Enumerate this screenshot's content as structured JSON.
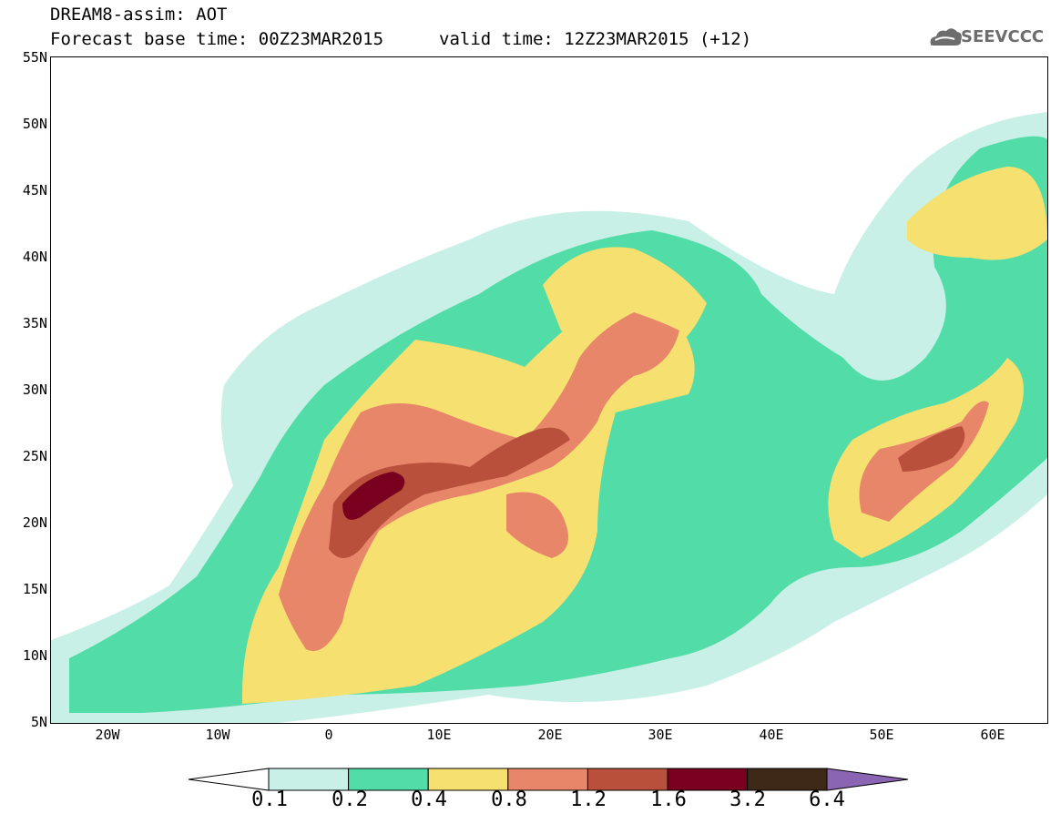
{
  "header": {
    "title_line1": "DREAM8-assim: AOT",
    "title_line2": "Forecast base time: 00Z23MAR2015",
    "valid_time": "valid time: 12Z23MAR2015 (+12)",
    "logo_text": "SEEVCCC"
  },
  "axes": {
    "lat_labels": [
      "55N",
      "50N",
      "45N",
      "40N",
      "35N",
      "30N",
      "25N",
      "20N",
      "15N",
      "10N",
      "5N"
    ],
    "lon_labels": [
      "20W",
      "10W",
      "0",
      "10E",
      "20E",
      "30E",
      "40E",
      "50E",
      "60E"
    ]
  },
  "colorbar": {
    "labels": [
      "0.1",
      "0.2",
      "0.4",
      "0.8",
      "1.2",
      "1.6",
      "3.2",
      "6.4"
    ],
    "colors": [
      "#c8f0e6",
      "#52dca8",
      "#f5e070",
      "#e8866a",
      "#b8503c",
      "#7a0020",
      "#3e2818",
      "#8c64b4"
    ]
  },
  "map_extent": {
    "lon": [
      -25,
      65
    ],
    "lat": [
      5,
      55
    ]
  }
}
